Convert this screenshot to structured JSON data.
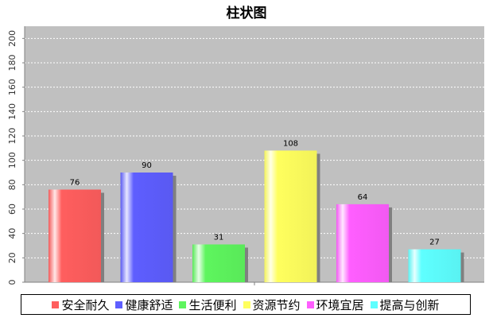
{
  "chart_data": {
    "type": "bar",
    "title": "柱状图",
    "categories": [
      "安全耐久",
      "健康舒适",
      "生活便利",
      "资源节约",
      "环境宜居",
      "提高与创新"
    ],
    "values": [
      76,
      90,
      31,
      108,
      64,
      27
    ],
    "colors": [
      "#ff5e5e",
      "#5e5eff",
      "#5ef55e",
      "#ffff5e",
      "#ff5eff",
      "#5effff"
    ],
    "ylim": [
      0,
      210
    ],
    "yticks": [
      0,
      20,
      40,
      60,
      80,
      100,
      120,
      140,
      160,
      180,
      200
    ],
    "grid": true,
    "legend_position": "bottom",
    "plot_background": "#c0c0c0"
  }
}
